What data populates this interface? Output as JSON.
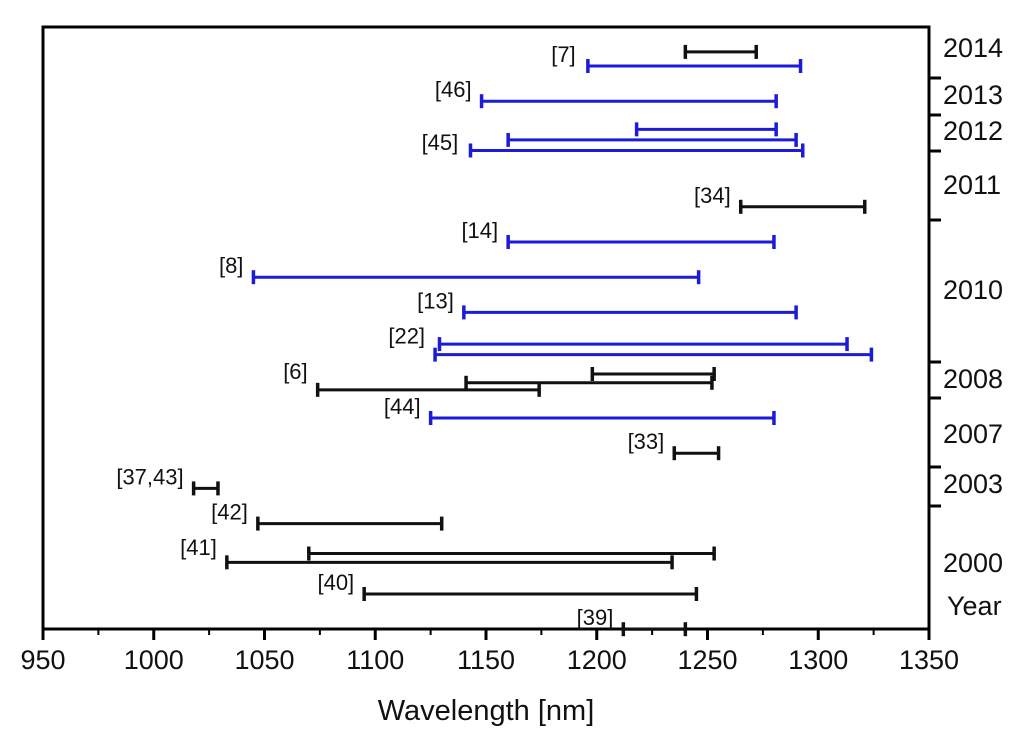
{
  "chart_data": {
    "type": "range-bar",
    "title": "",
    "xlabel": "Wavelength [nm]",
    "ylabel": "Year",
    "xlim": [
      950,
      1350
    ],
    "x_ticks": [
      950,
      1000,
      1050,
      1100,
      1150,
      1200,
      1250,
      1300,
      1350
    ],
    "tick_labels": [
      "950",
      "1000",
      "1050",
      "1100",
      "1150",
      "1200",
      "1250",
      "1300",
      "1350"
    ],
    "colors": {
      "black": "#111111",
      "blue": "#1c1cd6"
    },
    "year_labels": [
      "2014",
      "2013",
      "2012",
      "2011",
      "2010",
      "2008",
      "2007",
      "2003",
      "2000"
    ],
    "references": [
      {
        "label": "[7]",
        "row": 1,
        "label_start": 1195
      },
      {
        "label": "[46]",
        "row": 2,
        "label_start": 1148
      },
      {
        "label": "[45]",
        "row": 3.5,
        "label_start": 1142
      },
      {
        "label": "[34]",
        "row": 5,
        "label_start": 1265
      },
      {
        "label": "[14]",
        "row": 6,
        "label_start": 1160
      },
      {
        "label": "[8]",
        "row": 7,
        "label_start": 1045
      },
      {
        "label": "[13]",
        "row": 8,
        "label_start": 1140
      },
      {
        "label": "[22]",
        "row": 9,
        "label_start": 1127
      },
      {
        "label": "[6]",
        "row": 10,
        "label_start": 1074
      },
      {
        "label": "[44]",
        "row": 11,
        "label_start": 1125
      },
      {
        "label": "[33]",
        "row": 12,
        "label_start": 1235
      },
      {
        "label": "[37,43]",
        "row": 13,
        "label_start": 1018
      },
      {
        "label": "[42]",
        "row": 14,
        "label_start": 1047
      },
      {
        "label": "[41]",
        "row": 15,
        "label_start": 1033
      },
      {
        "label": "[40]",
        "row": 16,
        "label_start": 1095
      },
      {
        "label": "[39]",
        "row": 17,
        "label_start": 1212
      }
    ],
    "series": [
      {
        "name": "[7] a",
        "start": 1240,
        "end": 1272,
        "row": 0.6,
        "color": "black"
      },
      {
        "name": "[7] b",
        "start": 1196,
        "end": 1292,
        "row": 1,
        "color": "blue"
      },
      {
        "name": "[46]",
        "start": 1148,
        "end": 1281,
        "row": 2,
        "color": "blue"
      },
      {
        "name": "[45] a",
        "start": 1218,
        "end": 1281,
        "row": 2.8,
        "color": "blue"
      },
      {
        "name": "[45] b",
        "start": 1160,
        "end": 1290,
        "row": 3.1,
        "color": "blue"
      },
      {
        "name": "[45] c",
        "start": 1143,
        "end": 1293,
        "row": 3.4,
        "color": "blue"
      },
      {
        "name": "[34]",
        "start": 1265,
        "end": 1321,
        "row": 5,
        "color": "black"
      },
      {
        "name": "[14]",
        "start": 1160,
        "end": 1280,
        "row": 6,
        "color": "blue"
      },
      {
        "name": "[8]",
        "start": 1045,
        "end": 1246,
        "row": 7,
        "color": "blue"
      },
      {
        "name": "[13]",
        "start": 1140,
        "end": 1290,
        "row": 8,
        "color": "blue"
      },
      {
        "name": "[22] a",
        "start": 1129,
        "end": 1313,
        "row": 8.9,
        "color": "blue"
      },
      {
        "name": "[22] b",
        "start": 1127,
        "end": 1324,
        "row": 9.2,
        "color": "blue"
      },
      {
        "name": "[6] a",
        "start": 1198,
        "end": 1253,
        "row": 9.75,
        "color": "black"
      },
      {
        "name": "[6] b",
        "start": 1141,
        "end": 1252,
        "row": 10,
        "color": "black"
      },
      {
        "name": "[6] c",
        "start": 1074,
        "end": 1174,
        "row": 10.2,
        "color": "black"
      },
      {
        "name": "[44]",
        "start": 1125,
        "end": 1280,
        "row": 11,
        "color": "blue"
      },
      {
        "name": "[33]",
        "start": 1235,
        "end": 1255,
        "row": 12,
        "color": "black"
      },
      {
        "name": "[37,43]",
        "start": 1018,
        "end": 1029,
        "row": 13,
        "color": "black"
      },
      {
        "name": "[42]",
        "start": 1047,
        "end": 1130,
        "row": 14,
        "color": "black"
      },
      {
        "name": "[41] a",
        "start": 1070,
        "end": 1253,
        "row": 14.85,
        "color": "black"
      },
      {
        "name": "[41] b",
        "start": 1033,
        "end": 1234,
        "row": 15.1,
        "color": "black"
      },
      {
        "name": "[40]",
        "start": 1095,
        "end": 1245,
        "row": 16,
        "color": "black"
      },
      {
        "name": "[39]",
        "start": 1212,
        "end": 1240,
        "row": 17,
        "color": "black"
      }
    ]
  }
}
